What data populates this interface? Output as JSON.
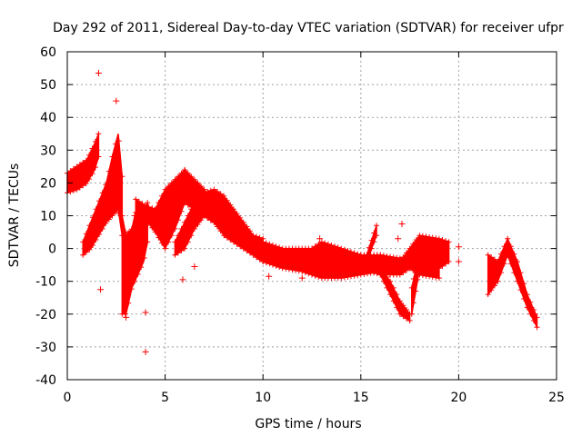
{
  "chart_data": {
    "type": "scatter",
    "title": "Day 292 of 2011, Sidereal Day-to-day VTEC variation (SDTVAR) for receiver ufpr",
    "xlabel": "GPS time / hours",
    "ylabel": "SDTVAR / TECUs",
    "xlim": [
      0,
      25
    ],
    "ylim": [
      -40,
      60
    ],
    "xticks": [
      "0",
      "5",
      "10",
      "15",
      "20",
      "25"
    ],
    "yticks": [
      "-40",
      "-30",
      "-20",
      "-10",
      "0",
      "10",
      "20",
      "30",
      "40",
      "50",
      "60"
    ],
    "grid": true,
    "marker": "+",
    "color": "#ff0000",
    "series": [
      {
        "name": "SDTVAR",
        "bands": [
          {
            "x": [
              0.0,
              0.5,
              1.0,
              1.4,
              1.6
            ],
            "upper": [
              23,
              25,
              27,
              32,
              35
            ],
            "lower": [
              17,
              18,
              20,
              24,
              28
            ]
          },
          {
            "x": [
              0.8,
              1.2,
              1.6,
              2.0,
              2.3,
              2.6,
              2.8
            ],
            "upper": [
              2,
              8,
              14,
              20,
              28,
              35,
              22
            ],
            "lower": [
              -2,
              0,
              4,
              8,
              10,
              12,
              4
            ]
          },
          {
            "x": [
              2.8,
              3.0,
              3.3,
              3.6,
              3.9,
              4.1
            ],
            "upper": [
              10,
              4,
              6,
              14,
              10,
              14
            ],
            "lower": [
              -20,
              -20,
              -12,
              -8,
              -4,
              2
            ]
          },
          {
            "x": [
              3.5,
              4.0,
              4.5,
              5.0,
              5.5,
              6.0
            ],
            "upper": [
              15,
              13,
              12,
              18,
              21,
              24
            ],
            "lower": [
              11,
              9,
              5,
              0,
              6,
              14
            ]
          },
          {
            "x": [
              5.5,
              6.0,
              6.5,
              7.0,
              7.5,
              8.0,
              8.5,
              9.0,
              9.5,
              10.0
            ],
            "upper": [
              2,
              8,
              14,
              17,
              18,
              16,
              12,
              8,
              4,
              3
            ],
            "lower": [
              -2,
              0,
              6,
              10,
              8,
              4,
              2,
              0,
              -2,
              -4
            ]
          },
          {
            "x": [
              6.0,
              7.0,
              8.0,
              9.0,
              10.0,
              11.0,
              12.0,
              13.0,
              14.0,
              15.0,
              16.0,
              17.0,
              17.5,
              18.0,
              19.0
            ],
            "upper": [
              24,
              18,
              10,
              5,
              2,
              0,
              0,
              0,
              -2,
              -2,
              -2,
              -3,
              -2,
              0,
              0
            ],
            "lower": [
              14,
              10,
              6,
              2,
              -4,
              -6,
              -7,
              -9,
              -9,
              -8,
              -7,
              -6,
              -6,
              -8,
              -9
            ]
          },
          {
            "x": [
              12.5,
              13.0,
              14.0,
              15.0,
              16.0,
              17.0,
              18.0,
              19.0,
              19.5
            ],
            "upper": [
              0,
              2,
              0,
              -2,
              -2,
              -4,
              4,
              3,
              2
            ],
            "lower": [
              -8,
              -8,
              -6,
              -6,
              -8,
              -8,
              -4,
              -6,
              -4
            ]
          },
          {
            "x": [
              16.0,
              16.5,
              17.0,
              17.5
            ],
            "upper": [
              -6,
              -10,
              -16,
              -20
            ],
            "lower": [
              -8,
              -14,
              -20,
              -22
            ]
          },
          {
            "x": [
              15.3,
              15.8
            ],
            "upper": [
              -2,
              7
            ],
            "lower": [
              -4,
              4
            ]
          },
          {
            "x": [
              17.6,
              18.0
            ],
            "upper": [
              -12,
              -1
            ],
            "lower": [
              -20,
              -6
            ]
          },
          {
            "x": [
              21.5,
              22.0,
              22.5,
              23.0,
              23.5,
              24.0
            ],
            "upper": [
              -2,
              -4,
              3,
              -4,
              -14,
              -21
            ],
            "lower": [
              -14,
              -10,
              -2,
              -10,
              -18,
              -24
            ]
          }
        ],
        "outliers": [
          {
            "x": 1.6,
            "y": 53.5
          },
          {
            "x": 1.7,
            "y": -12.5
          },
          {
            "x": 2.5,
            "y": 45
          },
          {
            "x": 3.0,
            "y": -21
          },
          {
            "x": 4.0,
            "y": -31.5
          },
          {
            "x": 4.0,
            "y": -19.5
          },
          {
            "x": 5.9,
            "y": -9.5
          },
          {
            "x": 6.5,
            "y": -5.5
          },
          {
            "x": 10.3,
            "y": -8.5
          },
          {
            "x": 12.0,
            "y": -9
          },
          {
            "x": 12.9,
            "y": 3
          },
          {
            "x": 17.1,
            "y": 7.5
          },
          {
            "x": 16.9,
            "y": 3
          },
          {
            "x": 20.0,
            "y": 0.5
          },
          {
            "x": 20.0,
            "y": -4
          },
          {
            "x": 23.9,
            "y": -20
          }
        ]
      }
    ]
  }
}
